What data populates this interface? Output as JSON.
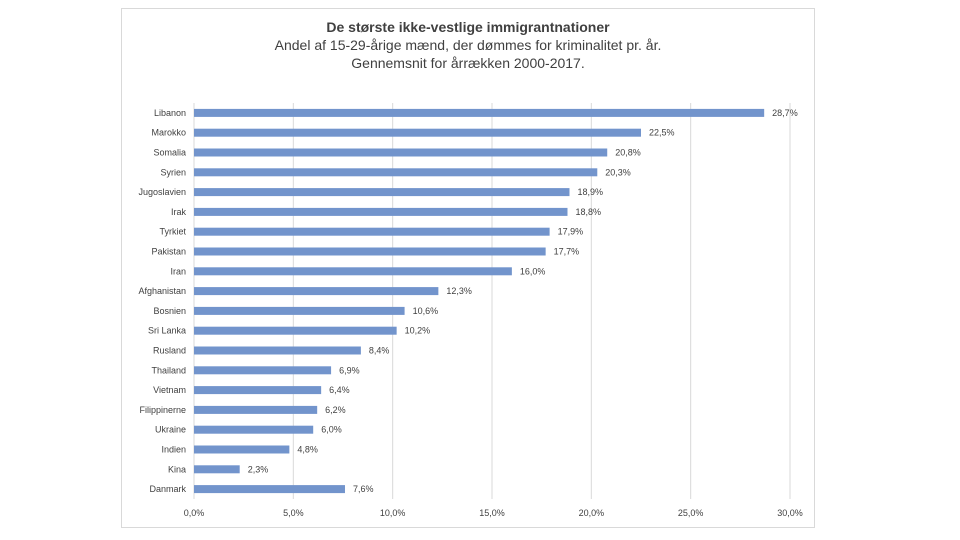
{
  "chart_data": {
    "type": "bar",
    "orientation": "horizontal",
    "title": "De største ikke-vestlige immigrantnationer",
    "subtitle": [
      "Andel af 15-29-årige mænd, der dømmes for kriminalitet pr. år.",
      "Gennemsnit for årrækken 2000-2017."
    ],
    "categories": [
      "Libanon",
      "Marokko",
      "Somalia",
      "Syrien",
      "Jugoslavien",
      "Irak",
      "Tyrkiet",
      "Pakistan",
      "Iran",
      "Afghanistan",
      "Bosnien",
      "Sri Lanka",
      "Rusland",
      "Thailand",
      "Vietnam",
      "Filippinerne",
      "Ukraine",
      "Indien",
      "Kina",
      "Danmark"
    ],
    "values": [
      28.7,
      22.5,
      20.8,
      20.3,
      18.9,
      18.8,
      17.9,
      17.7,
      16.0,
      12.3,
      10.6,
      10.2,
      8.4,
      6.9,
      6.4,
      6.2,
      6.0,
      4.8,
      2.3,
      7.6
    ],
    "data_labels": [
      "28,7%",
      "22,5%",
      "20,8%",
      "20,3%",
      "18,9%",
      "18,8%",
      "17,9%",
      "17,7%",
      "16,0%",
      "12,3%",
      "10,6%",
      "10,2%",
      "8,4%",
      "6,9%",
      "6,4%",
      "6,2%",
      "6,0%",
      "4,8%",
      "2,3%",
      "7,6%"
    ],
    "xticks": [
      0,
      5,
      10,
      15,
      20,
      25,
      30
    ],
    "xtick_labels": [
      "0,0%",
      "5,0%",
      "10,0%",
      "15,0%",
      "20,0%",
      "25,0%",
      "30,0%"
    ],
    "xlim": [
      0,
      30
    ],
    "grid": true,
    "legend": "none",
    "bar_color": "#7294cc",
    "grid_color": "#d9d9d9"
  }
}
